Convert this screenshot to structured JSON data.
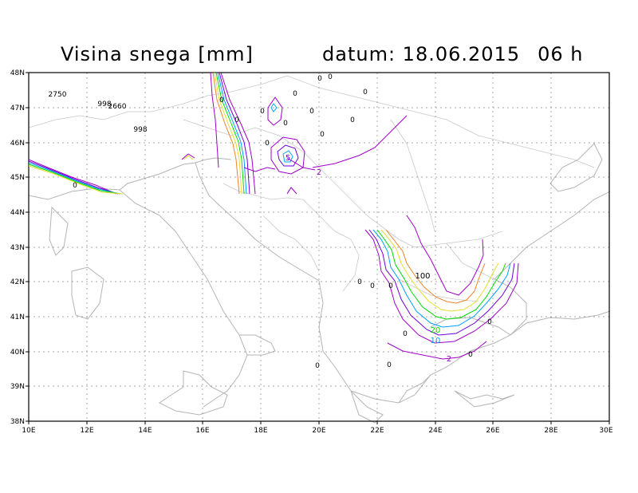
{
  "header": {
    "title": "Visina snega [mm]",
    "date_label": "datum:",
    "date": "18.06.2015",
    "hour": "06 h"
  },
  "axes": {
    "lat_labels": [
      "48N",
      "47N",
      "46N",
      "45N",
      "44N",
      "43N",
      "42N",
      "41N",
      "40N",
      "39N",
      "38N"
    ],
    "lon_labels": [
      "10E",
      "12E",
      "14E",
      "16E",
      "18E",
      "20E",
      "22E",
      "24E",
      "26E",
      "28E",
      "30E"
    ]
  },
  "point_labels": {
    "p2750": "2750",
    "p998a": "998",
    "p2660": "2660",
    "p998b": "998",
    "zero": "0"
  },
  "contour_labels": {
    "c2a": "2",
    "c2b": "2",
    "c5": "5",
    "c10": "10",
    "c20": "20",
    "c100": "100"
  },
  "colors": {
    "c2": "#a000c8",
    "c5": "#6e00dc",
    "c10": "#00a0ff",
    "c20": "#00dc00",
    "c50": "#e6dc32",
    "c100": "#f08228",
    "coast": "#b4b4b4",
    "grid": "#888888"
  }
}
